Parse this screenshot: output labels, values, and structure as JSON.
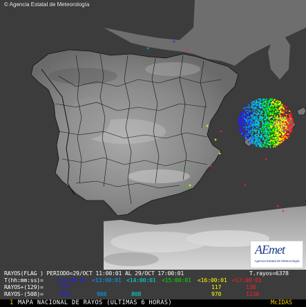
{
  "header": {
    "copyright": "© Agencia Estatal de Meteorología"
  },
  "logo": {
    "text": "AEmet",
    "subtitle": "Agencia Estatal de Meteorología"
  },
  "legend": {
    "row1": {
      "left": "RAYOS(FLAG ) PERIODO=29/OCT 11:00:01 AL 29/OCT 17:00:01",
      "right": "T.rayos=6378"
    },
    "row2": {
      "label": "T(hh:mm:ss)=",
      "times": [
        {
          "text": "<12:00:01",
          "color": "#2020ff"
        },
        {
          "text": "<13:00:01",
          "color": "#00a0ff"
        },
        {
          "text": "<14:00:01",
          "color": "#00e0e0"
        },
        {
          "text": "<15:00:01",
          "color": "#00e000"
        },
        {
          "text": "<16:00:01",
          "color": "#ffff00"
        },
        {
          "text": "<17:00:01",
          "color": "#ff2020"
        }
      ]
    },
    "row3": {
      "label": "RAYOS+(129)=",
      "values": [
        "374",
        "",
        "",
        "",
        "117",
        "138"
      ]
    },
    "row4": {
      "label": "RAYOS-(508)=",
      "values": [
        "590",
        "908",
        "808",
        "",
        "970",
        "1130"
      ]
    }
  },
  "footer": {
    "index": "1",
    "title": "MAPA NACIONAL DE RAYOS (ULTIMAS 6 HORAS)",
    "brand": "McIDAS"
  },
  "map": {
    "land_color": "#7a7a7a",
    "sea_color": "#3c3c3c",
    "border_color": "#000000",
    "strike_colors": [
      "#2020ff",
      "#00a0ff",
      "#00e0e0",
      "#00e000",
      "#ffff00",
      "#ff2020"
    ]
  }
}
